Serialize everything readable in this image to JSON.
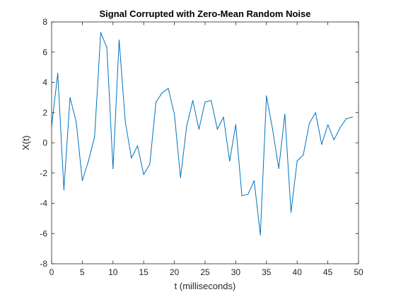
{
  "chart_data": {
    "type": "line",
    "title": "Signal Corrupted with Zero-Mean Random Noise",
    "xlabel": "t (milliseconds)",
    "ylabel": "X(t)",
    "xlim": [
      0,
      50
    ],
    "ylim": [
      -8,
      8
    ],
    "xticks": [
      0,
      5,
      10,
      15,
      20,
      25,
      30,
      35,
      40,
      45,
      50
    ],
    "yticks": [
      -8,
      -6,
      -4,
      -2,
      0,
      2,
      4,
      6,
      8
    ],
    "grid": false,
    "line_color": "#0072BD",
    "series": [
      {
        "x": [
          0,
          1,
          2,
          3,
          4,
          5,
          6,
          7,
          8,
          9,
          10,
          11,
          12,
          13,
          14,
          15,
          16,
          17,
          18,
          19,
          20,
          21,
          22,
          23,
          24,
          25,
          26,
          27,
          28,
          29,
          30,
          31,
          32,
          33,
          34,
          35,
          36,
          37,
          38,
          39,
          40,
          41,
          42,
          43,
          44,
          45,
          46,
          47,
          48,
          49
        ],
        "values": [
          1.1,
          4.6,
          -3.1,
          3.0,
          1.4,
          -2.5,
          -1.2,
          0.4,
          7.3,
          6.3,
          -1.7,
          6.8,
          1.4,
          -1.0,
          -0.2,
          -2.1,
          -1.4,
          2.7,
          3.3,
          3.6,
          1.9,
          -2.3,
          1.1,
          2.8,
          0.9,
          2.7,
          2.8,
          0.9,
          1.7,
          -1.2,
          1.2,
          -3.5,
          -3.4,
          -2.5,
          -6.1,
          3.1,
          0.9,
          -1.7,
          1.9,
          -4.6,
          -1.2,
          -0.8,
          1.3,
          2.0,
          -0.1,
          1.2,
          0.2,
          1.0,
          1.6,
          1.7
        ]
      }
    ]
  }
}
